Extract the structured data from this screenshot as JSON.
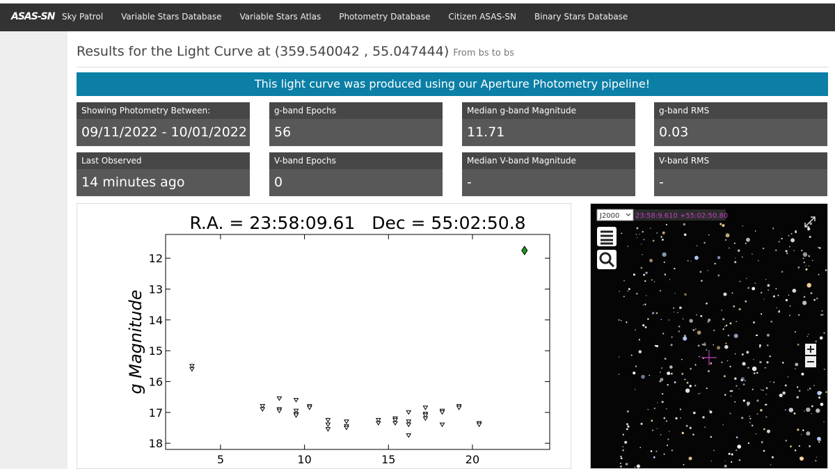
{
  "nav": {
    "logo": "ASAS-SN",
    "items": [
      "Sky Patrol",
      "Variable Stars Database",
      "Variable Stars Atlas",
      "Photometry Database",
      "Citizen ASAS-SN",
      "Binary Stars Database"
    ]
  },
  "header": {
    "title": "Results for the Light Curve at (359.540042 , 55.047444)",
    "subtitle": "From bs to bs"
  },
  "banner": "This light curve was produced using our Aperture Photometry pipeline!",
  "stats": [
    {
      "label": "Showing Photometry Between:",
      "value": "09/11/2022 - 10/01/2022"
    },
    {
      "label": "g-band Epochs",
      "value": "56"
    },
    {
      "label": "Median g-band Magnitude",
      "value": "11.71"
    },
    {
      "label": "g-band RMS",
      "value": "0.03"
    },
    {
      "label": "Last Observed",
      "value": "14 minutes ago"
    },
    {
      "label": "V-band Epochs",
      "value": "0"
    },
    {
      "label": "Median V-band Magnitude",
      "value": "-"
    },
    {
      "label": "V-band RMS",
      "value": "-"
    }
  ],
  "chart_data": {
    "type": "scatter",
    "title": "R.A. = 23:58:09.61   Dec = 55:02:50.8",
    "y_label": "g Magnitude",
    "xlim": [
      1.73,
      24.6
    ],
    "ylim": [
      18.2,
      11.23
    ],
    "xticks": [
      5,
      10,
      15,
      20
    ],
    "yticks": [
      12,
      13,
      14,
      15,
      16,
      17,
      18
    ],
    "series": [
      {
        "marker": "triangle-down",
        "color": "#000000",
        "x": [
          3.3,
          3.3,
          7.5,
          7.5,
          8.5,
          8.5,
          8.5,
          9.5,
          9.5,
          9.5,
          9.5,
          10.3,
          10.3,
          11.4,
          11.4,
          11.4,
          12.5,
          12.5,
          12.5,
          14.4,
          14.4,
          15.4,
          15.4,
          15.4,
          16.2,
          16.2,
          16.2,
          16.2,
          17.2,
          17.2,
          17.2,
          17.2,
          18.2,
          18.2,
          18.2,
          19.2,
          19.2,
          20.4,
          20.4
        ],
        "values": [
          15.5,
          15.6,
          16.8,
          16.9,
          16.55,
          16.9,
          16.95,
          16.6,
          16.95,
          17.05,
          17.1,
          16.8,
          16.85,
          17.25,
          17.4,
          17.55,
          17.3,
          17.45,
          17.5,
          17.25,
          17.35,
          17.2,
          17.25,
          17.35,
          17.0,
          17.3,
          17.4,
          17.75,
          16.85,
          17.05,
          17.1,
          17.2,
          16.95,
          17.0,
          17.4,
          16.8,
          16.85,
          17.35,
          17.4
        ]
      },
      {
        "marker": "diamond",
        "color": "#1f9a1f",
        "x": [
          23.1
        ],
        "values": [
          11.75
        ]
      }
    ]
  },
  "sky": {
    "frame": "J2000",
    "coords": "23:58:9.610 +55:02:50.80"
  }
}
